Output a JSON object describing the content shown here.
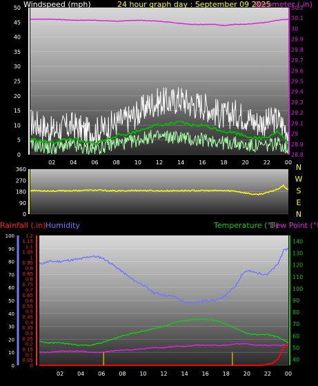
{
  "header": {
    "left_title": "Windspeed (mph)",
    "center_title": "24 hour graph day : September 09 2025",
    "right_title": "Barometer (.in)"
  },
  "colors": {
    "background": "#000000",
    "wind_gust": "#ffffff",
    "wind_avg": "#aaffaa",
    "wind_mean": "#00bb00",
    "barometer": "#dd22dd",
    "direction": "#ffff00",
    "rain": "#ff0000",
    "humidity": "#7777ff",
    "temperature": "#11cc11",
    "dewpoint": "#dd22dd",
    "rain_rate": "#ccaa00",
    "compass": "#ffff00"
  },
  "x_axis": {
    "ticks": [
      "02",
      "04",
      "06",
      "08",
      "10",
      "12",
      "14",
      "16",
      "18",
      "20",
      "22",
      "00"
    ]
  },
  "chart_data": [
    {
      "type": "line",
      "name": "wind-barometer",
      "title": "24 hour graph day : September 09 2025",
      "x_ticks": [
        "02",
        "04",
        "06",
        "08",
        "10",
        "12",
        "14",
        "16",
        "18",
        "20",
        "22",
        "00"
      ],
      "left_axis": {
        "label": "Windspeed (mph)",
        "ticks": [
          "0",
          "5",
          "10",
          "15",
          "20",
          "25",
          "30",
          "35",
          "40",
          "45",
          "50"
        ],
        "ylim": [
          0,
          50
        ]
      },
      "right_axis": {
        "label": "Barometer (.in)",
        "ticks": [
          "28.8",
          "28.9",
          "29",
          "29.1",
          "29.2",
          "29.3",
          "29.4",
          "29.5",
          "29.6",
          "29.7",
          "29.8",
          "29.9",
          "30",
          "30.1",
          "30.2"
        ],
        "ylim": [
          28.8,
          30.2
        ]
      },
      "series": [
        {
          "name": "Barometer (.in)",
          "axis": "right",
          "x": [
            0,
            2,
            4,
            6,
            8,
            10,
            12,
            14,
            15,
            16,
            17,
            18,
            19,
            20,
            21,
            22,
            23,
            24
          ],
          "values": [
            30.09,
            30.09,
            30.08,
            30.08,
            30.07,
            30.08,
            30.07,
            30.05,
            30.04,
            30.04,
            30.04,
            30.03,
            30.04,
            30.04,
            30.05,
            30.06,
            30.08,
            30.09
          ]
        },
        {
          "axis": "left",
          "kind": "gust",
          "x": [
            0,
            1,
            2,
            3,
            4,
            5,
            6,
            7,
            8,
            9,
            10,
            11,
            12,
            13,
            14,
            15,
            16,
            17,
            18,
            19,
            20,
            21,
            22,
            23,
            24
          ],
          "values": [
            11,
            10,
            8,
            9,
            10,
            8,
            8,
            9,
            11,
            12,
            14,
            17,
            18,
            18,
            19,
            17,
            17,
            15,
            13,
            14,
            13,
            11,
            11,
            12,
            8
          ]
        },
        {
          "axis": "left",
          "kind": "average",
          "x": [
            0,
            1,
            2,
            3,
            4,
            5,
            6,
            7,
            8,
            9,
            10,
            11,
            12,
            13,
            14,
            15,
            16,
            17,
            18,
            19,
            20,
            21,
            22,
            23,
            24
          ],
          "values": [
            3,
            3,
            2,
            3,
            3,
            2,
            2,
            3,
            4,
            4,
            5,
            6,
            6,
            6,
            6,
            5,
            5,
            5,
            4,
            4,
            3,
            3,
            3,
            4,
            2
          ]
        },
        {
          "axis": "left",
          "kind": "mean",
          "x": [
            0,
            1,
            2,
            3,
            4,
            5,
            6,
            7,
            8,
            9,
            10,
            11,
            12,
            13,
            14,
            15,
            16,
            17,
            18,
            19,
            20,
            21,
            22,
            23,
            24
          ],
          "values": [
            5.5,
            4.5,
            4,
            5,
            5.5,
            4,
            4,
            5,
            6.5,
            7,
            8,
            9.5,
            10,
            10.5,
            11,
            10,
            10,
            9,
            8,
            7.5,
            6.5,
            5.5,
            6,
            8,
            4
          ]
        }
      ]
    },
    {
      "type": "line",
      "name": "wind-direction",
      "left_axis": {
        "ticks": [
          "0",
          "90",
          "180",
          "270",
          "360"
        ],
        "ylim": [
          0,
          360
        ]
      },
      "right_axis": {
        "ticks": [
          "N",
          "W",
          "S",
          "E",
          "N"
        ]
      },
      "series": [
        {
          "axis": "left",
          "x": [
            0,
            2,
            4,
            6,
            8,
            10,
            12,
            14,
            16,
            18,
            19,
            20,
            21,
            22,
            23,
            23.5,
            24
          ],
          "values": [
            190,
            185,
            188,
            192,
            185,
            190,
            186,
            188,
            188,
            188,
            185,
            170,
            155,
            170,
            200,
            230,
            195
          ]
        }
      ]
    },
    {
      "type": "line",
      "name": "rain-humidity-temperature",
      "left_axes": [
        {
          "label": "Rainfall (.in)",
          "ticks": [
            "0",
            "0.05",
            "0.1",
            "0.15",
            "0.2",
            "0.25",
            "0.3",
            "0.35",
            "0.4",
            "0.45",
            "0.5",
            "0.55",
            "0.6",
            "0.65",
            "0.7",
            "0.75",
            "0.8",
            "0.85",
            "0.9",
            "0.95",
            "1",
            "1.05",
            "1.1",
            "1.15",
            "1.2"
          ],
          "ylim": [
            0,
            1.2
          ]
        },
        {
          "label": "Humidity",
          "ticks": [
            "0",
            "10",
            "20",
            "30",
            "40",
            "50",
            "60",
            "70",
            "80",
            "90",
            "100"
          ],
          "ylim": [
            0,
            100
          ]
        }
      ],
      "right_axis": {
        "label": "Temperature (°F)",
        "label2": "Dew Point (°F)",
        "ticks": [
          "40",
          "50",
          "60",
          "70",
          "80",
          "90",
          "100",
          "110",
          "120",
          "130",
          "140"
        ],
        "ylim": [
          35,
          145
        ]
      },
      "series": [
        {
          "name": "Humidity",
          "axis": "humidity",
          "x": [
            0,
            1,
            2,
            3,
            4,
            5,
            6,
            7,
            8,
            9,
            10,
            11,
            12,
            13,
            14,
            15,
            16,
            17,
            18,
            19,
            19.5,
            20,
            21,
            22,
            23,
            23.5,
            24
          ],
          "values": [
            78,
            80,
            80,
            81,
            82,
            84,
            83,
            78,
            72,
            66,
            62,
            56,
            54,
            53,
            48,
            48,
            50,
            50,
            54,
            62,
            70,
            73,
            71,
            70,
            78,
            88,
            90
          ]
        },
        {
          "name": "Temperature (°F)",
          "axis": "right",
          "x": [
            0,
            1,
            2,
            3,
            4,
            5,
            6,
            7,
            8,
            9,
            10,
            11,
            12,
            13,
            14,
            15,
            16,
            17,
            18,
            19,
            20,
            21,
            22,
            23,
            24
          ],
          "values": [
            55,
            54,
            54,
            53,
            52,
            52,
            54,
            57,
            60,
            62,
            64,
            66,
            68,
            71,
            73,
            74,
            74,
            73,
            70,
            66,
            62,
            61,
            61,
            59,
            54
          ]
        },
        {
          "name": "Dew Point (°F)",
          "axis": "right",
          "x": [
            0,
            1,
            2,
            3,
            4,
            5,
            6,
            7,
            8,
            9,
            10,
            11,
            12,
            13,
            14,
            15,
            16,
            17,
            18,
            19,
            20,
            21,
            22,
            23,
            24
          ],
          "values": [
            46,
            46,
            47,
            47,
            47,
            46,
            46,
            47,
            48,
            48,
            49,
            50,
            50,
            51,
            51,
            52,
            52,
            52,
            52,
            53,
            53,
            52,
            52,
            52,
            52
          ]
        },
        {
          "name": "Rainfall (.in)",
          "axis": "rain",
          "x": [
            0,
            21.5,
            22,
            22.5,
            23,
            23.3,
            23.6,
            24
          ],
          "values": [
            0,
            0,
            0.01,
            0.02,
            0.06,
            0.12,
            0.17,
            0.2
          ]
        },
        {
          "kind": "rain-rate",
          "axis": "rain",
          "x": [
            6.2,
            18.6
          ],
          "values": [
            0.12,
            0.12
          ]
        }
      ]
    }
  ]
}
